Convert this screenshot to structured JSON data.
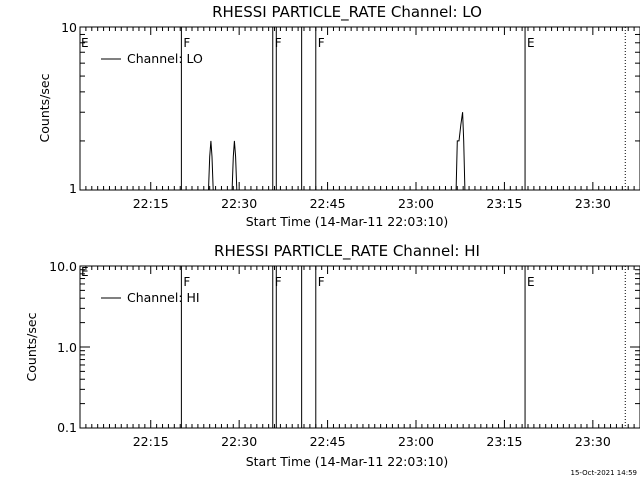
{
  "timestamp": "15-Oct-2021 14:59",
  "x_tick_labels": [
    "22:15",
    "22:30",
    "22:45",
    "23:00",
    "23:15",
    "23:30"
  ],
  "x_tick_minutes": [
    12,
    27,
    42,
    57,
    72,
    87
  ],
  "x_range_minutes": [
    0,
    95
  ],
  "markers": [
    {
      "t": 17.2,
      "label": "F",
      "style": "solid"
    },
    {
      "t": 32.7,
      "label": "F",
      "style": "solid"
    },
    {
      "t": 33.3,
      "label": "",
      "style": "solid"
    },
    {
      "t": 37.6,
      "label": "",
      "style": "solid"
    },
    {
      "t": 40.0,
      "label": "F",
      "style": "solid"
    },
    {
      "t": 75.5,
      "label": "E",
      "style": "solid"
    },
    {
      "t": 92.5,
      "label": "",
      "style": "dotted"
    }
  ],
  "panels": [
    {
      "title": "RHESSI PARTICLE_RATE Channel: LO",
      "ylabel": "Counts/sec",
      "xlabel": "Start Time (14-Mar-11 22:03:10)",
      "legend": "Channel: LO",
      "start_flag": "E",
      "y_tick_labels": [
        "10",
        "1"
      ],
      "chart_data": {
        "type": "line",
        "title": "RHESSI PARTICLE_RATE Channel: LO",
        "xlabel": "Start Time (14-Mar-11 22:03:10)",
        "ylabel": "Counts/sec",
        "x_unit": "minutes since 22:03:10",
        "y_scale": "log",
        "ylim": [
          1,
          10
        ],
        "series": [
          {
            "name": "Channel: LO",
            "x": [
              21.8,
              22.0,
              22.2,
              22.4,
              22.6,
              25.8,
              26.0,
              26.2,
              26.4,
              26.6,
              63.8,
              64.0,
              64.3,
              64.6,
              64.9,
              65.1,
              65.3
            ],
            "y": [
              1,
              1.6,
              2,
              1.6,
              1,
              1,
              1.6,
              2,
              1.6,
              1,
              1,
              2,
              2,
              2.5,
              3,
              2,
              1
            ]
          }
        ]
      }
    },
    {
      "title": "RHESSI PARTICLE_RATE Channel: HI",
      "ylabel": "Counts/sec",
      "xlabel": "Start Time (14-Mar-11 22:03:10)",
      "legend": "Channel: HI",
      "start_flag": "E",
      "y_tick_labels": [
        "10.0",
        "1.0",
        "0.1"
      ],
      "chart_data": {
        "type": "line",
        "title": "RHESSI PARTICLE_RATE Channel: HI",
        "xlabel": "Start Time (14-Mar-11 22:03:10)",
        "ylabel": "Counts/sec",
        "x_unit": "minutes since 22:03:10",
        "y_scale": "log",
        "ylim": [
          0.1,
          10
        ],
        "series": [
          {
            "name": "Channel: HI",
            "x": [],
            "y": []
          }
        ]
      }
    }
  ]
}
